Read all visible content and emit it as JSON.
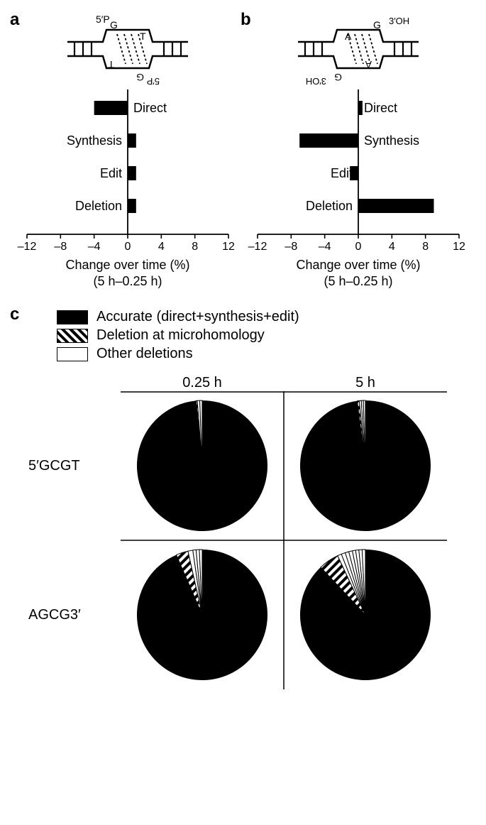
{
  "panelA": {
    "label": "a",
    "dna": {
      "top_end": "5′P",
      "bottom_end": "5′P",
      "top_bases": [
        "G",
        "T"
      ],
      "bottom_bases": [
        "G",
        "T"
      ]
    },
    "chart": {
      "type": "bar",
      "orientation": "horizontal",
      "categories": [
        "Direct",
        "Synthesis",
        "Edit",
        "Deletion"
      ],
      "values": [
        -4,
        1,
        1,
        1
      ],
      "label_side": [
        "right",
        "left",
        "left",
        "left"
      ],
      "bar_color": "#000000",
      "xlim": [
        -12,
        12
      ],
      "xticks": [
        -12,
        -8,
        -4,
        0,
        4,
        8,
        12
      ],
      "xlabel_line1": "Change over time (%)",
      "xlabel_line2": "(5 h–0.25 h)",
      "bar_thickness": 20,
      "row_gap": 46,
      "tick_fontsize": 16,
      "cat_fontsize": 18,
      "axis_color": "#000000"
    }
  },
  "panelB": {
    "label": "b",
    "dna": {
      "top_end": "3′OH",
      "bottom_end": "3′OH",
      "top_bases": [
        "A",
        "G"
      ],
      "bottom_bases": [
        "G",
        "A"
      ]
    },
    "chart": {
      "type": "bar",
      "orientation": "horizontal",
      "categories": [
        "Direct",
        "Synthesis",
        "Edit",
        "Deletion"
      ],
      "values": [
        0.5,
        -7,
        -1,
        9
      ],
      "label_side": [
        "right",
        "right",
        "left",
        "left"
      ],
      "bar_color": "#000000",
      "xlim": [
        -12,
        12
      ],
      "xticks": [
        -12,
        -8,
        -4,
        0,
        4,
        8,
        12
      ],
      "xlabel_line1": "Change over time (%)",
      "xlabel_line2": "(5 h–0.25 h)",
      "bar_thickness": 20,
      "row_gap": 46,
      "tick_fontsize": 16,
      "cat_fontsize": 18,
      "axis_color": "#000000"
    }
  },
  "panelC": {
    "label": "c",
    "legend": [
      {
        "label": "Accurate (direct+synthesis+edit)",
        "fill": "solid"
      },
      {
        "label": "Deletion at microhomology",
        "fill": "hatch"
      },
      {
        "label": "Other deletions",
        "fill": "white"
      }
    ],
    "col_headers": [
      "0.25 h",
      "5 h"
    ],
    "row_labels": [
      "5′GCGT",
      "AGCG3′"
    ],
    "pies": {
      "type": "pie",
      "radius": 92,
      "colors": {
        "accurate": "#000000",
        "hatch_stroke": "#000000",
        "white": "#ffffff",
        "outline": "#000000"
      },
      "data": [
        [
          {
            "accurate": 98.5,
            "hatch": 0.3,
            "other_slices": [
              0.6,
              0.6
            ]
          },
          {
            "accurate": 98.0,
            "hatch": 0.5,
            "other_slices": [
              0.5,
              0.5,
              0.5
            ]
          }
        ],
        [
          {
            "accurate": 93.5,
            "hatch": 3.0,
            "other_slices": [
              1.2,
              0.8,
              0.8,
              0.7
            ]
          },
          {
            "accurate": 88.0,
            "hatch": 5.0,
            "other_slices": [
              1.0,
              1.0,
              0.9,
              0.9,
              0.8,
              0.8,
              0.8,
              0.8
            ]
          }
        ]
      ]
    },
    "grid_line_color": "#000000"
  }
}
